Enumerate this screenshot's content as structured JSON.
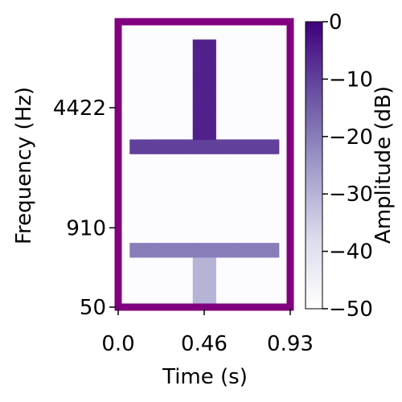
{
  "chart_data": {
    "type": "heatmap",
    "title": "",
    "xlabel": "Time (s)",
    "ylabel": "Frequency (Hz)",
    "xlim": [
      0.0,
      0.93
    ],
    "ylim": [
      50,
      11025
    ],
    "yscale": "mel",
    "x_ticks": [
      {
        "value": 0.0,
        "label": "0.0"
      },
      {
        "value": 0.465,
        "label": "0.46"
      },
      {
        "value": 0.93,
        "label": "0.93"
      }
    ],
    "y_ticks": [
      {
        "value": 50,
        "label": "50"
      },
      {
        "value": 910,
        "label": "910"
      },
      {
        "value": 4422,
        "label": "4422"
      }
    ],
    "colorbar": {
      "label": "Amplitude (dB)",
      "range": [
        -50,
        0
      ],
      "colormap": "Purples",
      "ticks": [
        {
          "value": 0,
          "label": "0"
        },
        {
          "value": -10,
          "label": "−10"
        },
        {
          "value": -20,
          "label": "−20"
        },
        {
          "value": -30,
          "label": "−30"
        },
        {
          "value": -40,
          "label": "−40"
        },
        {
          "value": -50,
          "label": "−50"
        }
      ]
    },
    "frame_color": "#800080",
    "components": [
      {
        "t_start": 0.06,
        "t_end": 0.87,
        "f_low": 2600,
        "f_high": 3100,
        "level_db": -10
      },
      {
        "t_start": 0.06,
        "t_end": 0.87,
        "f_low": 520,
        "f_high": 680,
        "level_db": -20
      },
      {
        "t_start": 0.4,
        "t_end": 0.52,
        "f_low": 3100,
        "f_high": 9300,
        "level_db": -5
      },
      {
        "t_start": 0.4,
        "t_end": 0.52,
        "f_low": 60,
        "f_high": 520,
        "level_db": -30
      }
    ],
    "background_db": -48
  }
}
